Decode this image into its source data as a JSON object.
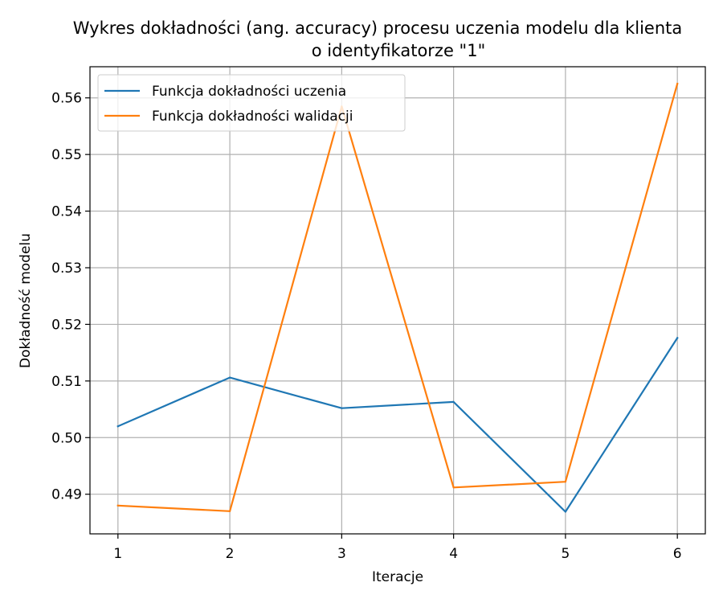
{
  "chart_data": {
    "type": "line",
    "title": "Wykres dokładności (ang. accuracy) procesu uczenia modelu dla klienta",
    "title_line2": "o identyfikatorze \"1\"",
    "xlabel": "Iteracje",
    "ylabel": "Dokładność modelu",
    "x": [
      1,
      2,
      3,
      4,
      5,
      6
    ],
    "x_ticks": [
      "1",
      "2",
      "3",
      "4",
      "5",
      "6"
    ],
    "xlim": [
      0.75,
      6.25
    ],
    "ylim": [
      0.483,
      0.5655
    ],
    "y_ticks": [
      "0.49",
      "0.50",
      "0.51",
      "0.52",
      "0.53",
      "0.54",
      "0.55",
      "0.56"
    ],
    "grid": true,
    "legend_position": "top-left",
    "series": [
      {
        "name": "Funkcja dokładności uczenia",
        "color": "#1f77b4",
        "values": [
          0.502,
          0.5106,
          0.5052,
          0.5063,
          0.4869,
          0.5176
        ]
      },
      {
        "name": "Funkcja dokładności walidacji",
        "color": "#ff7f0e",
        "values": [
          0.488,
          0.487,
          0.5585,
          0.4912,
          0.4922,
          0.5625
        ]
      }
    ]
  }
}
